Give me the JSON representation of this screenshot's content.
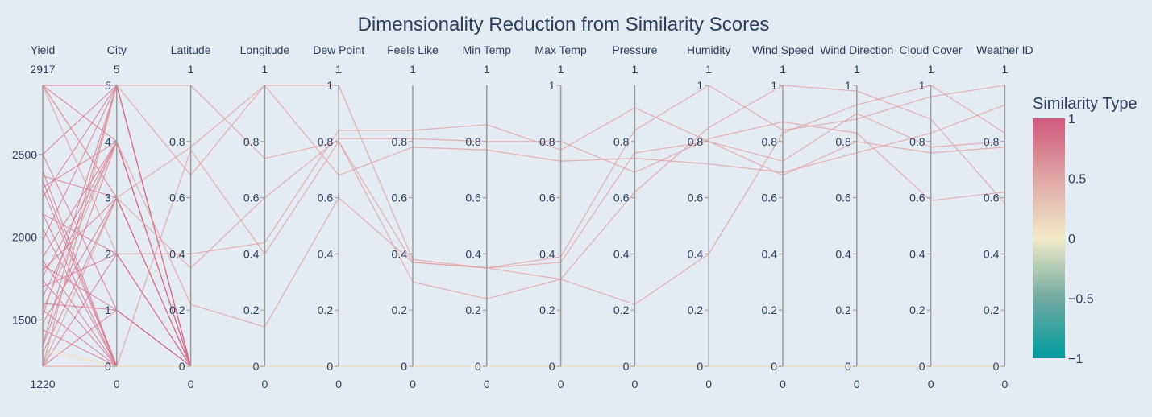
{
  "chart_data": {
    "type": "parallel_coordinates",
    "title": "Dimensionality Reduction from Similarity Scores",
    "dimensions": [
      {
        "label": "Yield",
        "range": [
          1220,
          2917
        ],
        "range_labels": [
          "2917",
          "1220"
        ],
        "tickvals": [
          1500,
          2000,
          2500
        ],
        "ticktext": [
          "1500",
          "2000",
          "2500"
        ]
      },
      {
        "label": "City",
        "range": [
          0,
          5
        ],
        "range_labels": [
          "5",
          "0"
        ],
        "tickvals": [
          0,
          1,
          2,
          3,
          4,
          5
        ],
        "ticktext": [
          "0",
          "1",
          "2",
          "3",
          "4",
          "5"
        ]
      },
      {
        "label": "Latitude",
        "range": [
          0,
          1
        ],
        "range_labels": [
          "1",
          "0"
        ],
        "tickvals": [
          0,
          0.2,
          0.4,
          0.6,
          0.8
        ],
        "ticktext": [
          "0",
          "0.2",
          "0.4",
          "0.6",
          "0.8"
        ]
      },
      {
        "label": "Longitude",
        "range": [
          0,
          1
        ],
        "range_labels": [
          "1",
          "0"
        ],
        "tickvals": [
          0,
          0.2,
          0.4,
          0.6,
          0.8
        ],
        "ticktext": [
          "0",
          "0.2",
          "0.4",
          "0.6",
          "0.8"
        ]
      },
      {
        "label": "Dew Point",
        "range": [
          0,
          1
        ],
        "range_labels": [
          "1",
          "0"
        ],
        "tickvals": [
          0,
          0.2,
          0.4,
          0.6,
          0.8,
          1
        ],
        "ticktext": [
          "0",
          "0.2",
          "0.4",
          "0.6",
          "0.8",
          "1"
        ]
      },
      {
        "label": "Feels Like",
        "range": [
          0,
          1
        ],
        "range_labels": [
          "1",
          "0"
        ],
        "tickvals": [
          0,
          0.2,
          0.4,
          0.6,
          0.8
        ],
        "ticktext": [
          "0",
          "0.2",
          "0.4",
          "0.6",
          "0.8"
        ]
      },
      {
        "label": "Min Temp",
        "range": [
          0,
          1
        ],
        "range_labels": [
          "1",
          "0"
        ],
        "tickvals": [
          0,
          0.2,
          0.4,
          0.6,
          0.8
        ],
        "ticktext": [
          "0",
          "0.2",
          "0.4",
          "0.6",
          "0.8"
        ]
      },
      {
        "label": "Max Temp",
        "range": [
          0,
          1
        ],
        "range_labels": [
          "1",
          "0"
        ],
        "tickvals": [
          0,
          0.2,
          0.4,
          0.6,
          0.8,
          1
        ],
        "ticktext": [
          "0",
          "0.2",
          "0.4",
          "0.6",
          "0.8",
          "1"
        ]
      },
      {
        "label": "Pressure",
        "range": [
          0,
          1
        ],
        "range_labels": [
          "1",
          "0"
        ],
        "tickvals": [
          0,
          0.2,
          0.4,
          0.6,
          0.8
        ],
        "ticktext": [
          "0",
          "0.2",
          "0.4",
          "0.6",
          "0.8"
        ]
      },
      {
        "label": "Humidity",
        "range": [
          0,
          1
        ],
        "range_labels": [
          "1",
          "0"
        ],
        "tickvals": [
          0,
          0.2,
          0.4,
          0.6,
          0.8,
          1
        ],
        "ticktext": [
          "0",
          "0.2",
          "0.4",
          "0.6",
          "0.8",
          "1"
        ]
      },
      {
        "label": "Wind Speed",
        "range": [
          0,
          1
        ],
        "range_labels": [
          "1",
          "0"
        ],
        "tickvals": [
          0,
          0.2,
          0.4,
          0.6,
          0.8,
          1
        ],
        "ticktext": [
          "0",
          "0.2",
          "0.4",
          "0.6",
          "0.8",
          "1"
        ]
      },
      {
        "label": "Wind Direction",
        "range": [
          0,
          1
        ],
        "range_labels": [
          "1",
          "0"
        ],
        "tickvals": [
          0,
          0.2,
          0.4,
          0.6,
          0.8,
          1
        ],
        "ticktext": [
          "0",
          "0.2",
          "0.4",
          "0.6",
          "0.8",
          "1"
        ]
      },
      {
        "label": "Cloud Cover",
        "range": [
          0,
          1
        ],
        "range_labels": [
          "1",
          "0"
        ],
        "tickvals": [
          0,
          0.2,
          0.4,
          0.6,
          0.8,
          1
        ],
        "ticktext": [
          "0",
          "0.2",
          "0.4",
          "0.6",
          "0.8",
          "1"
        ]
      },
      {
        "label": "Weather ID",
        "range": [
          0,
          1
        ],
        "range_labels": [
          "1",
          "0"
        ],
        "tickvals": [
          0,
          0.2,
          0.4,
          0.6,
          0.8
        ],
        "ticktext": [
          "0",
          "0.2",
          "0.4",
          "0.6",
          "0.8"
        ]
      }
    ],
    "colorbar": {
      "title": "Similarity Type",
      "range": [
        -1,
        1
      ],
      "tickvals": [
        1,
        0.5,
        0,
        -0.5,
        -1
      ],
      "ticktext": [
        "1",
        "0.5",
        "0",
        "−0.5",
        "−1"
      ],
      "colors": [
        "#d0587e",
        "#dfa6a4",
        "#f1eac8",
        "#72aaa1",
        "#009b9e"
      ]
    },
    "lines": [
      {
        "values": [
          2917,
          5,
          0,
          0,
          0,
          0,
          0,
          0,
          0,
          0,
          0,
          0,
          0,
          0
        ],
        "color_value": 0.85
      },
      {
        "values": [
          2917,
          5,
          0,
          0,
          0,
          0,
          0,
          0,
          0,
          0,
          0,
          0,
          0,
          0
        ],
        "color_value": 0.85
      },
      {
        "values": [
          2917,
          4,
          0,
          0,
          0,
          0,
          0,
          0,
          0,
          0,
          0,
          0,
          0,
          0
        ],
        "color_value": 0.85
      },
      {
        "values": [
          2917,
          3,
          0,
          0,
          0,
          0,
          0,
          0,
          0,
          0,
          0,
          0,
          0,
          0
        ],
        "color_value": 0.85
      },
      {
        "values": [
          2500,
          5,
          0,
          0,
          0,
          0,
          0,
          0,
          0,
          0,
          0,
          0,
          0,
          0
        ],
        "color_value": 0.85
      },
      {
        "values": [
          2500,
          1,
          0,
          0,
          0,
          0,
          0,
          0,
          0,
          0,
          0,
          0,
          0,
          0
        ],
        "color_value": 0.85
      },
      {
        "values": [
          2400,
          0,
          0,
          0,
          0,
          0,
          0,
          0,
          0,
          0,
          0,
          0,
          0,
          0
        ],
        "color_value": 0.85
      },
      {
        "values": [
          2370,
          3,
          0,
          0,
          0,
          0,
          0,
          0,
          0,
          0,
          0,
          0,
          0,
          0
        ],
        "color_value": 0.85
      },
      {
        "values": [
          2340,
          0,
          0,
          0,
          0,
          0,
          0,
          0,
          0,
          0,
          0,
          0,
          0,
          0
        ],
        "color_value": 0.85
      },
      {
        "values": [
          2300,
          4,
          0,
          0,
          0,
          0,
          0,
          0,
          0,
          0,
          0,
          0,
          0,
          0
        ],
        "color_value": 0.85
      },
      {
        "values": [
          2290,
          0,
          0,
          0,
          0,
          0,
          0,
          0,
          0,
          0,
          0,
          0,
          0,
          0
        ],
        "color_value": 0.85
      },
      {
        "values": [
          2240,
          5,
          0,
          0,
          0,
          0,
          0,
          0,
          0,
          0,
          0,
          0,
          0,
          0
        ],
        "color_value": 0.85
      },
      {
        "values": [
          2140,
          2,
          0,
          0,
          0,
          0,
          0,
          0,
          0,
          0,
          0,
          0,
          0,
          0
        ],
        "color_value": 0.85
      },
      {
        "values": [
          2140,
          0,
          0,
          0,
          0,
          0,
          0,
          0,
          0,
          0,
          0,
          0,
          0,
          0
        ],
        "color_value": 0.85
      },
      {
        "values": [
          2050,
          0,
          0,
          0,
          0,
          0,
          0,
          0,
          0,
          0,
          0,
          0,
          0,
          0
        ],
        "color_value": 0.85
      },
      {
        "values": [
          1980,
          5,
          0,
          0,
          0,
          0,
          0,
          0,
          0,
          0,
          0,
          0,
          0,
          0
        ],
        "color_value": 0.85
      },
      {
        "values": [
          1880,
          4,
          0,
          0,
          0,
          0,
          0,
          0,
          0,
          0,
          0,
          0,
          0,
          0
        ],
        "color_value": 0.85
      },
      {
        "values": [
          1860,
          0,
          0,
          0,
          0,
          0,
          0,
          0,
          0,
          0,
          0,
          0,
          0,
          0
        ],
        "color_value": 0.85
      },
      {
        "values": [
          1830,
          1,
          0,
          0,
          0,
          0,
          0,
          0,
          0,
          0,
          0,
          0,
          0,
          0
        ],
        "color_value": 0.85
      },
      {
        "values": [
          1800,
          3,
          0,
          0,
          0,
          0,
          0,
          0,
          0,
          0,
          0,
          0,
          0,
          0
        ],
        "color_value": 0.85
      },
      {
        "values": [
          1760,
          4,
          0,
          0,
          0,
          0,
          0,
          0,
          0,
          0,
          0,
          0,
          0,
          0
        ],
        "color_value": 0.85
      },
      {
        "values": [
          1740,
          0,
          0,
          0,
          0,
          0,
          0,
          0,
          0,
          0,
          0,
          0,
          0,
          0
        ],
        "color_value": 0.85
      },
      {
        "values": [
          1700,
          2,
          0,
          0,
          0,
          0,
          0,
          0,
          0,
          0,
          0,
          0,
          0,
          0
        ],
        "color_value": 0.85
      },
      {
        "values": [
          1640,
          4,
          0,
          0,
          0,
          0,
          0,
          0,
          0,
          0,
          0,
          0,
          0,
          0
        ],
        "color_value": 0.85
      },
      {
        "values": [
          1600,
          1,
          0,
          0,
          0,
          0,
          0,
          0,
          0,
          0,
          0,
          0,
          0,
          0
        ],
        "color_value": 0.85
      },
      {
        "values": [
          1560,
          0,
          0,
          0,
          0,
          0,
          0,
          0,
          0,
          0,
          0,
          0,
          0,
          0
        ],
        "color_value": 0.85
      },
      {
        "values": [
          1520,
          5,
          0,
          0,
          0,
          0,
          0,
          0,
          0,
          0,
          0,
          0,
          0,
          0
        ],
        "color_value": 0.85
      },
      {
        "values": [
          1480,
          3,
          0,
          0,
          0,
          0,
          0,
          0,
          0,
          0,
          0,
          0,
          0,
          0
        ],
        "color_value": 0.85
      },
      {
        "values": [
          1440,
          0,
          0,
          0,
          0,
          0,
          0,
          0,
          0,
          0,
          0,
          0,
          0,
          0
        ],
        "color_value": 0.85
      },
      {
        "values": [
          1350,
          5,
          0,
          0,
          0,
          0,
          0,
          0,
          0,
          0,
          0,
          0,
          0,
          0
        ],
        "color_value": 0.85
      },
      {
        "values": [
          1340,
          4,
          0,
          0,
          0,
          0,
          0,
          0,
          0,
          0,
          0,
          0,
          0,
          0
        ],
        "color_value": 0.85
      },
      {
        "values": [
          1300,
          3,
          0,
          0,
          0,
          0,
          0,
          0,
          0,
          0,
          0,
          0,
          0,
          0
        ],
        "color_value": 0.85
      },
      {
        "values": [
          1220,
          2,
          0,
          0,
          0,
          0,
          0,
          0,
          0,
          0,
          0,
          0,
          0,
          0
        ],
        "color_value": 0.85
      },
      {
        "values": [
          1220,
          1,
          0,
          0,
          0,
          0,
          0,
          0,
          0,
          0,
          0,
          0,
          0,
          0
        ],
        "color_value": 0.85
      },
      {
        "values": [
          1330,
          0,
          0,
          0,
          0,
          0,
          0,
          0,
          0,
          0,
          0,
          0,
          0,
          0
        ],
        "color_value": 0.05
      },
      {
        "values": [
          1310,
          0,
          0,
          0,
          0,
          0,
          0,
          0,
          0,
          0,
          0,
          0,
          0,
          0
        ],
        "color_value": 0.05
      },
      {
        "values": [
          1220,
          0,
          0,
          0,
          0,
          0,
          0,
          0,
          0,
          0,
          0,
          0,
          0,
          0
        ],
        "color_value": 0.05
      },
      {
        "values": [
          1220,
          5,
          1,
          0.74,
          0.8,
          0.37,
          0.35,
          0.31,
          0.62,
          0.85,
          1.0,
          0.98,
          0.88,
          0.58
        ],
        "color_value": 0.55
      },
      {
        "values": [
          2917,
          3,
          0.78,
          1.0,
          1.0,
          0.38,
          0.35,
          0.39,
          0.84,
          1.0,
          0.84,
          0.88,
          0.96,
          1.0
        ],
        "color_value": 0.55
      },
      {
        "values": [
          1220,
          0,
          0.77,
          0.4,
          0.8,
          0.3,
          0.24,
          0.31,
          0.22,
          0.4,
          0.83,
          0.93,
          1.0,
          0.83
        ],
        "color_value": 0.55
      },
      {
        "values": [
          1560,
          4,
          0.22,
          0.14,
          0.6,
          0.37,
          0.35,
          0.37,
          0.76,
          0.8,
          0.73,
          0.9,
          0.78,
          0.8
        ],
        "color_value": 0.55
      },
      {
        "values": [
          1220,
          3,
          0.35,
          0.6,
          0.81,
          0.81,
          0.8,
          0.8,
          0.69,
          0.81,
          0.87,
          0.83,
          0.59,
          0.62
        ],
        "color_value": 0.55
      },
      {
        "values": [
          2917,
          2,
          0.4,
          0.44,
          0.84,
          0.84,
          0.86,
          0.77,
          0.92,
          0.8,
          0.68,
          0.8,
          0.76,
          0.78
        ],
        "color_value": 0.55
      },
      {
        "values": [
          1220,
          5,
          0.68,
          1.0,
          0.68,
          0.78,
          0.77,
          0.73,
          0.74,
          0.72,
          0.69,
          0.76,
          0.83,
          0.93
        ],
        "color_value": 0.55
      }
    ]
  }
}
